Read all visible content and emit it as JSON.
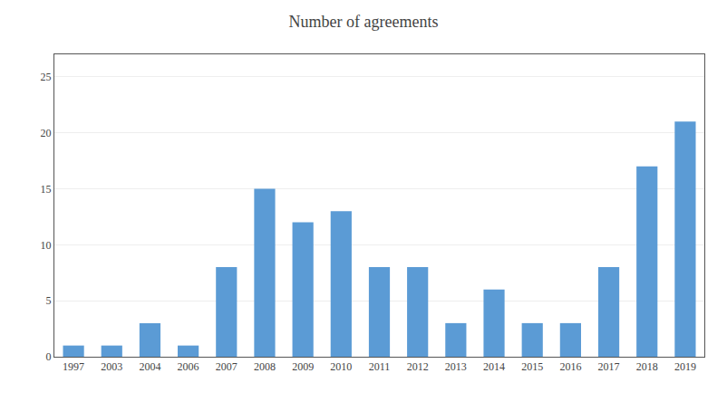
{
  "chart_data": {
    "type": "bar",
    "title": "Number of agreements",
    "categories": [
      "1997",
      "2003",
      "2004",
      "2006",
      "2007",
      "2008",
      "2009",
      "2010",
      "2011",
      "2012",
      "2013",
      "2014",
      "2015",
      "2016",
      "2017",
      "2018",
      "2019"
    ],
    "values": [
      1,
      1,
      3,
      1,
      8,
      15,
      12,
      13,
      8,
      8,
      3,
      6,
      3,
      3,
      8,
      17,
      21
    ],
    "color": "#5b9bd5",
    "ylim": [
      0,
      27
    ],
    "yticks": [
      0,
      5,
      10,
      15,
      20,
      25
    ],
    "grid": true
  }
}
